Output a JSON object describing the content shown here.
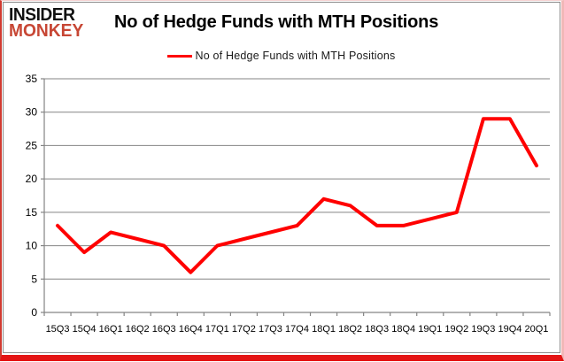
{
  "header": {
    "logo_line1": "INSIDER",
    "logo_line2": "MONKEY",
    "title": "No of Hedge Funds with MTH Positions"
  },
  "legend": {
    "label": "No of Hedge Funds with MTH Positions"
  },
  "colors": {
    "series_line": "#ff0000",
    "gridline": "#848484",
    "axis": "#848484",
    "tick_text": "#000000",
    "logo_black": "#111111",
    "logo_red": "#c74634",
    "frame_red": "#e41414",
    "inner_border": "#8c8c8c"
  },
  "chart_data": {
    "type": "line",
    "title": "No of Hedge Funds with MTH Positions",
    "categories": [
      "15Q3",
      "15Q4",
      "16Q1",
      "16Q2",
      "16Q3",
      "16Q4",
      "17Q1",
      "17Q2",
      "17Q3",
      "17Q4",
      "18Q1",
      "18Q2",
      "18Q3",
      "18Q4",
      "19Q1",
      "19Q2",
      "19Q3",
      "19Q4",
      "20Q1"
    ],
    "series": [
      {
        "name": "No of Hedge Funds with MTH Positions",
        "values": [
          13,
          9,
          12,
          11,
          10,
          6,
          10,
          11,
          12,
          13,
          17,
          16,
          13,
          13,
          14,
          15,
          29,
          29,
          22
        ]
      }
    ],
    "xlabel": "",
    "ylabel": "",
    "ylim": [
      0,
      35
    ],
    "ytick_step": 5,
    "grid": true,
    "legend_position": "top"
  }
}
